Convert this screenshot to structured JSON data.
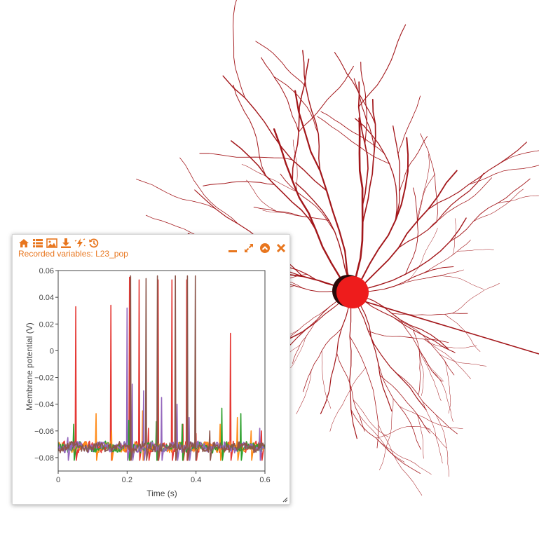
{
  "panel": {
    "title_prefix": "Recorded variables:",
    "title_population": "L23_pop",
    "accent_color": "#e8761e",
    "toolbar_icons": [
      "home-icon",
      "list-icon",
      "image-icon",
      "download-icon",
      "star-zap-icon",
      "history-icon"
    ],
    "window_icons": [
      "minimize-icon",
      "maximize-icon",
      "collapse-icon",
      "close-icon"
    ]
  },
  "neuron": {
    "soma_color": "#ee1c1c",
    "dendrite_color": "#a3171b"
  },
  "chart_data": {
    "type": "line",
    "xlabel": "Time (s)",
    "ylabel": "Membrane potential (V)",
    "xlim": [
      0,
      0.6
    ],
    "ylim": [
      -0.09,
      0.06
    ],
    "x_ticks": [
      0,
      0.2,
      0.4,
      0.6
    ],
    "x_tick_labels": [
      "0",
      "0.2",
      "0.4",
      "0.6"
    ],
    "y_ticks": [
      0.06,
      0.04,
      0.02,
      0,
      -0.02,
      -0.04,
      -0.06,
      -0.08
    ],
    "y_tick_labels": [
      "0.06",
      "0.04",
      "0.02",
      "0",
      "−0.02",
      "−0.04",
      "−0.06",
      "−0.08"
    ],
    "grid": false,
    "baseline": -0.072,
    "series": [
      {
        "color": "#e53935",
        "spikes": [
          [
            0.051,
            0.033
          ],
          [
            0.153,
            0.034
          ],
          [
            0.207,
            0.055
          ],
          [
            0.235,
            0.053
          ],
          [
            0.262,
            -0.058
          ],
          [
            0.29,
            0.053
          ],
          [
            0.33,
            0.053
          ],
          [
            0.362,
            -0.055
          ],
          [
            0.373,
            0.053
          ],
          [
            0.4,
            -0.062
          ],
          [
            0.5,
            0.013
          ],
          [
            0.59,
            -0.06
          ]
        ]
      },
      {
        "color": "#ff8c1a",
        "spikes": [
          [
            0.11,
            -0.047
          ],
          [
            0.155,
            -0.06
          ],
          [
            0.245,
            -0.045
          ],
          [
            0.34,
            -0.048
          ],
          [
            0.47,
            -0.055
          ],
          [
            0.52,
            -0.05
          ],
          [
            0.56,
            -0.06
          ]
        ]
      },
      {
        "color": "#2ca02c",
        "spikes": [
          [
            0.045,
            -0.055
          ],
          [
            0.205,
            -0.052
          ],
          [
            0.285,
            -0.053
          ],
          [
            0.36,
            -0.055
          ],
          [
            0.475,
            -0.043
          ],
          [
            0.53,
            -0.047
          ]
        ]
      },
      {
        "color": "#9467bd",
        "spikes": [
          [
            0.028,
            -0.065
          ],
          [
            0.2,
            0.032
          ],
          [
            0.215,
            -0.025
          ],
          [
            0.248,
            -0.03
          ],
          [
            0.3,
            -0.035
          ],
          [
            0.345,
            -0.04
          ],
          [
            0.38,
            -0.05
          ],
          [
            0.585,
            -0.058
          ]
        ]
      },
      {
        "color": "#8c564b",
        "spikes": [
          [
            0.21,
            0.056
          ],
          [
            0.255,
            0.054
          ],
          [
            0.288,
            0.056
          ],
          [
            0.34,
            0.056
          ],
          [
            0.375,
            0.056
          ],
          [
            0.398,
            0.056
          ],
          [
            0.44,
            -0.06
          ]
        ]
      }
    ]
  }
}
